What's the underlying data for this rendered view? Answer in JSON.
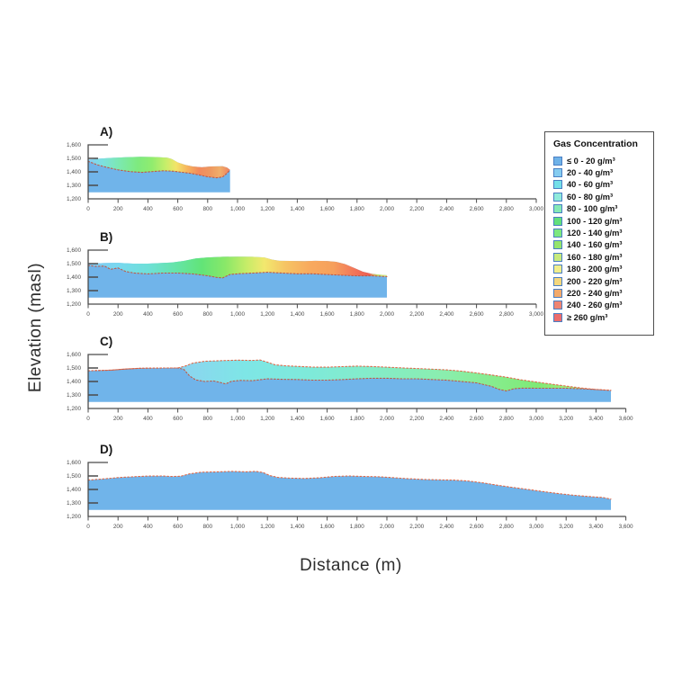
{
  "figure": {
    "ylabel": "Elevation (masl)",
    "xlabel": "Distance (m)"
  },
  "legend": {
    "title": "Gas Concentration",
    "swatch_border": "#4a7fc4",
    "entries": [
      {
        "label": "≤ 0 - 20 g/m³",
        "color": "#6fb2e8"
      },
      {
        "label": "20 - 40 g/m³",
        "color": "#85ccf0"
      },
      {
        "label": "40 - 60 g/m³",
        "color": "#74dfe8"
      },
      {
        "label": "60 - 80 g/m³",
        "color": "#8feadb"
      },
      {
        "label": "80 - 100 g/m³",
        "color": "#85e9b5"
      },
      {
        "label": "100 - 120 g/m³",
        "color": "#63df7c"
      },
      {
        "label": "120 - 140 g/m³",
        "color": "#7ee87e"
      },
      {
        "label": "140 - 160 g/m³",
        "color": "#95e46c"
      },
      {
        "label": "160 - 180 g/m³",
        "color": "#c7ea7d"
      },
      {
        "label": "180 - 200 g/m³",
        "color": "#f1ee8b"
      },
      {
        "label": "200 - 220 g/m³",
        "color": "#f4d77c"
      },
      {
        "label": "220 - 240 g/m³",
        "color": "#f3aa6b"
      },
      {
        "label": "240 - 260 g/m³",
        "color": "#ef8572"
      },
      {
        "label": "≥ 260 g/m³",
        "color": "#ec6c6c"
      }
    ]
  },
  "chart_data": {
    "type": "area",
    "xlabel": "Distance (m)",
    "ylabel": "Elevation (masl)",
    "y_axis": {
      "min": 1200,
      "max": 1600,
      "step": 100
    },
    "x_tick_step": 200,
    "colors": {
      "base_fill": "#70b4ea",
      "basal_dash": "#c05a48",
      "surface_dash": "#e06848",
      "axis": "#4a4a4a",
      "tick_text": "#4a4a4a",
      "panel_label": "#1a1a1a"
    },
    "panels": [
      {
        "id": "A",
        "label": "A)",
        "x_max": 3000,
        "profile_end": 950,
        "fill_bottom": 1248,
        "surface": [
          [
            0,
            1490
          ],
          [
            60,
            1497
          ],
          [
            150,
            1503
          ],
          [
            250,
            1508
          ],
          [
            350,
            1512
          ],
          [
            450,
            1510
          ],
          [
            530,
            1505
          ],
          [
            560,
            1495
          ],
          [
            600,
            1470
          ],
          [
            650,
            1452
          ],
          [
            700,
            1440
          ],
          [
            760,
            1434
          ],
          [
            820,
            1440
          ],
          [
            900,
            1441
          ],
          [
            930,
            1432
          ],
          [
            950,
            1415
          ]
        ],
        "base": [
          [
            0,
            1478
          ],
          [
            60,
            1452
          ],
          [
            120,
            1435
          ],
          [
            200,
            1415
          ],
          [
            280,
            1402
          ],
          [
            360,
            1396
          ],
          [
            430,
            1402
          ],
          [
            500,
            1408
          ],
          [
            560,
            1406
          ],
          [
            620,
            1398
          ],
          [
            680,
            1390
          ],
          [
            740,
            1378
          ],
          [
            800,
            1363
          ],
          [
            860,
            1356
          ],
          [
            900,
            1362
          ],
          [
            930,
            1390
          ],
          [
            950,
            1415
          ]
        ],
        "surface_dash": false,
        "gradient": [
          {
            "offset": 0,
            "color": "#86ccf2"
          },
          {
            "offset": 0.1,
            "color": "#7ce0e0"
          },
          {
            "offset": 0.22,
            "color": "#7ce9b0"
          },
          {
            "offset": 0.35,
            "color": "#7eea7e"
          },
          {
            "offset": 0.45,
            "color": "#90ec6e"
          },
          {
            "offset": 0.55,
            "color": "#c8ee6a"
          },
          {
            "offset": 0.62,
            "color": "#f2e468"
          },
          {
            "offset": 0.7,
            "color": "#f6b45e"
          },
          {
            "offset": 0.78,
            "color": "#f28a5c"
          },
          {
            "offset": 0.86,
            "color": "#ee9860"
          },
          {
            "offset": 0.93,
            "color": "#f0ae6a"
          },
          {
            "offset": 1,
            "color": "#ee7e5e"
          }
        ]
      },
      {
        "id": "B",
        "label": "B)",
        "x_max": 3000,
        "profile_end": 2000,
        "fill_bottom": 1248,
        "surface": [
          [
            0,
            1498
          ],
          [
            100,
            1504
          ],
          [
            200,
            1506
          ],
          [
            300,
            1500
          ],
          [
            400,
            1500
          ],
          [
            480,
            1504
          ],
          [
            560,
            1508
          ],
          [
            640,
            1520
          ],
          [
            720,
            1538
          ],
          [
            800,
            1546
          ],
          [
            900,
            1551
          ],
          [
            1000,
            1552
          ],
          [
            1100,
            1551
          ],
          [
            1180,
            1546
          ],
          [
            1230,
            1530
          ],
          [
            1280,
            1521
          ],
          [
            1350,
            1520
          ],
          [
            1450,
            1518
          ],
          [
            1520,
            1521
          ],
          [
            1600,
            1519
          ],
          [
            1660,
            1513
          ],
          [
            1720,
            1497
          ],
          [
            1780,
            1468
          ],
          [
            1840,
            1440
          ],
          [
            1900,
            1424
          ],
          [
            1950,
            1418
          ],
          [
            2000,
            1414
          ]
        ],
        "base": [
          [
            0,
            1487
          ],
          [
            50,
            1479
          ],
          [
            110,
            1481
          ],
          [
            150,
            1458
          ],
          [
            200,
            1468
          ],
          [
            250,
            1442
          ],
          [
            310,
            1430
          ],
          [
            400,
            1424
          ],
          [
            500,
            1430
          ],
          [
            600,
            1430
          ],
          [
            700,
            1424
          ],
          [
            800,
            1410
          ],
          [
            860,
            1398
          ],
          [
            900,
            1394
          ],
          [
            950,
            1420
          ],
          [
            1020,
            1426
          ],
          [
            1100,
            1430
          ],
          [
            1200,
            1436
          ],
          [
            1300,
            1430
          ],
          [
            1400,
            1425
          ],
          [
            1500,
            1425
          ],
          [
            1600,
            1419
          ],
          [
            1700,
            1414
          ],
          [
            1800,
            1409
          ],
          [
            1900,
            1409
          ],
          [
            2000,
            1404
          ]
        ],
        "surface_dash": false,
        "gradient": [
          {
            "offset": 0,
            "color": "#84c8f2"
          },
          {
            "offset": 0.1,
            "color": "#78d8f0"
          },
          {
            "offset": 0.2,
            "color": "#6ee0d8"
          },
          {
            "offset": 0.3,
            "color": "#64e4a4"
          },
          {
            "offset": 0.38,
            "color": "#62e478"
          },
          {
            "offset": 0.46,
            "color": "#8ae868"
          },
          {
            "offset": 0.53,
            "color": "#c6ec68"
          },
          {
            "offset": 0.59,
            "color": "#f2e86e"
          },
          {
            "offset": 0.66,
            "color": "#f6c464"
          },
          {
            "offset": 0.74,
            "color": "#f8aa5e"
          },
          {
            "offset": 0.82,
            "color": "#f6a05c"
          },
          {
            "offset": 0.89,
            "color": "#f2765a"
          },
          {
            "offset": 0.94,
            "color": "#ee5e52"
          },
          {
            "offset": 0.97,
            "color": "#c0e868"
          },
          {
            "offset": 1,
            "color": "#e2ee8a"
          }
        ]
      },
      {
        "id": "C",
        "label": "C)",
        "x_max": 3600,
        "profile_end": 3500,
        "fill_bottom": 1248,
        "surface": [
          [
            0,
            1479
          ],
          [
            150,
            1484
          ],
          [
            250,
            1492
          ],
          [
            350,
            1498
          ],
          [
            500,
            1500
          ],
          [
            600,
            1500
          ],
          [
            650,
            1515
          ],
          [
            700,
            1536
          ],
          [
            780,
            1550
          ],
          [
            900,
            1555
          ],
          [
            1000,
            1558
          ],
          [
            1100,
            1556
          ],
          [
            1150,
            1559
          ],
          [
            1200,
            1543
          ],
          [
            1250,
            1524
          ],
          [
            1320,
            1516
          ],
          [
            1400,
            1512
          ],
          [
            1500,
            1507
          ],
          [
            1600,
            1506
          ],
          [
            1700,
            1510
          ],
          [
            1800,
            1514
          ],
          [
            1900,
            1511
          ],
          [
            2000,
            1506
          ],
          [
            2100,
            1501
          ],
          [
            2200,
            1496
          ],
          [
            2300,
            1491
          ],
          [
            2400,
            1486
          ],
          [
            2500,
            1477
          ],
          [
            2600,
            1463
          ],
          [
            2700,
            1448
          ],
          [
            2800,
            1432
          ],
          [
            2900,
            1412
          ],
          [
            3000,
            1396
          ],
          [
            3100,
            1381
          ],
          [
            3200,
            1366
          ],
          [
            3300,
            1352
          ],
          [
            3400,
            1341
          ],
          [
            3500,
            1334
          ]
        ],
        "base": [
          [
            0,
            1479
          ],
          [
            150,
            1484
          ],
          [
            250,
            1492
          ],
          [
            350,
            1498
          ],
          [
            500,
            1500
          ],
          [
            600,
            1500
          ],
          [
            640,
            1490
          ],
          [
            680,
            1440
          ],
          [
            720,
            1412
          ],
          [
            780,
            1400
          ],
          [
            840,
            1404
          ],
          [
            880,
            1394
          ],
          [
            920,
            1382
          ],
          [
            960,
            1402
          ],
          [
            1020,
            1408
          ],
          [
            1100,
            1406
          ],
          [
            1200,
            1420
          ],
          [
            1300,
            1416
          ],
          [
            1400,
            1415
          ],
          [
            1500,
            1410
          ],
          [
            1600,
            1410
          ],
          [
            1700,
            1414
          ],
          [
            1800,
            1420
          ],
          [
            1900,
            1424
          ],
          [
            2000,
            1424
          ],
          [
            2100,
            1420
          ],
          [
            2200,
            1420
          ],
          [
            2300,
            1415
          ],
          [
            2400,
            1410
          ],
          [
            2500,
            1400
          ],
          [
            2600,
            1390
          ],
          [
            2700,
            1364
          ],
          [
            2750,
            1342
          ],
          [
            2800,
            1330
          ],
          [
            2850,
            1346
          ],
          [
            2900,
            1351
          ],
          [
            3000,
            1350
          ],
          [
            3100,
            1350
          ],
          [
            3200,
            1350
          ],
          [
            3300,
            1346
          ],
          [
            3400,
            1341
          ],
          [
            3500,
            1334
          ]
        ],
        "surface_dash": true,
        "gradient": [
          {
            "offset": 0,
            "color": "#8cc8f0"
          },
          {
            "offset": 0.18,
            "color": "#8cd4f0"
          },
          {
            "offset": 0.3,
            "color": "#7ee6e6"
          },
          {
            "offset": 0.42,
            "color": "#7eeada"
          },
          {
            "offset": 0.55,
            "color": "#84ecc8"
          },
          {
            "offset": 0.68,
            "color": "#8aeeae"
          },
          {
            "offset": 0.78,
            "color": "#86ec8c"
          },
          {
            "offset": 0.86,
            "color": "#7eea76"
          },
          {
            "offset": 0.92,
            "color": "#a2ec7a"
          },
          {
            "offset": 1,
            "color": "#b6ee8c"
          }
        ]
      },
      {
        "id": "D",
        "label": "D)",
        "x_max": 3600,
        "profile_end": 3500,
        "fill_bottom": 1248,
        "surface": [
          [
            0,
            1469
          ],
          [
            100,
            1478
          ],
          [
            200,
            1488
          ],
          [
            300,
            1494
          ],
          [
            400,
            1499
          ],
          [
            500,
            1500
          ],
          [
            560,
            1496
          ],
          [
            620,
            1498
          ],
          [
            680,
            1516
          ],
          [
            760,
            1528
          ],
          [
            860,
            1530
          ],
          [
            960,
            1534
          ],
          [
            1060,
            1531
          ],
          [
            1120,
            1534
          ],
          [
            1170,
            1526
          ],
          [
            1220,
            1502
          ],
          [
            1270,
            1489
          ],
          [
            1350,
            1484
          ],
          [
            1450,
            1481
          ],
          [
            1550,
            1487
          ],
          [
            1650,
            1497
          ],
          [
            1750,
            1500
          ],
          [
            1850,
            1496
          ],
          [
            1950,
            1494
          ],
          [
            2050,
            1487
          ],
          [
            2150,
            1479
          ],
          [
            2250,
            1474
          ],
          [
            2350,
            1471
          ],
          [
            2450,
            1469
          ],
          [
            2550,
            1462
          ],
          [
            2650,
            1448
          ],
          [
            2750,
            1430
          ],
          [
            2850,
            1414
          ],
          [
            2950,
            1399
          ],
          [
            3050,
            1384
          ],
          [
            3150,
            1369
          ],
          [
            3250,
            1357
          ],
          [
            3350,
            1348
          ],
          [
            3450,
            1340
          ],
          [
            3500,
            1328
          ]
        ],
        "base": null,
        "surface_dash": true,
        "gradient": null
      }
    ]
  }
}
